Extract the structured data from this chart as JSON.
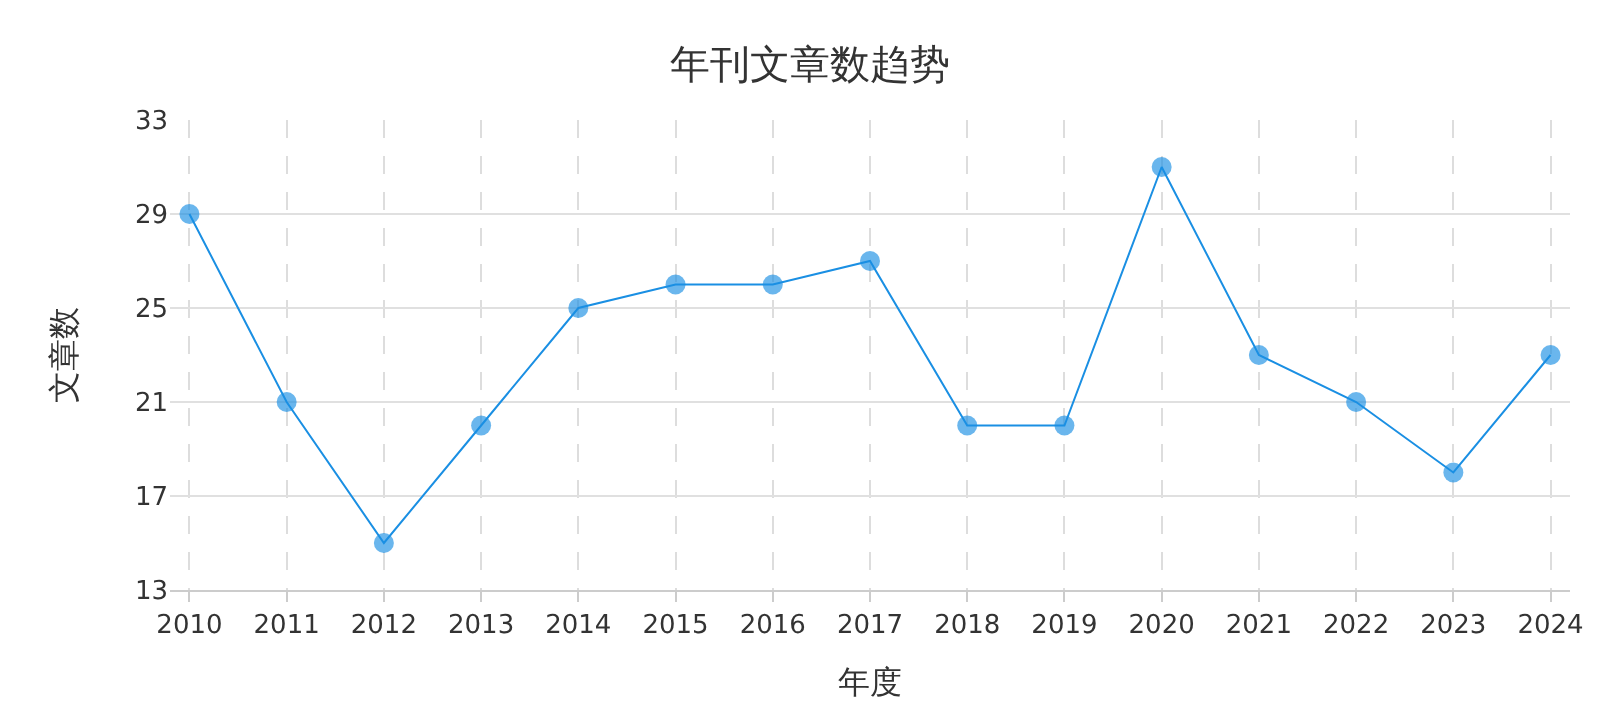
{
  "chart_data": {
    "type": "line",
    "title": "年刊文章数趋势",
    "xlabel": "年度",
    "ylabel": "文章数",
    "categories": [
      "2010",
      "2011",
      "2012",
      "2013",
      "2014",
      "2015",
      "2016",
      "2017",
      "2018",
      "2019",
      "2020",
      "2021",
      "2022",
      "2023",
      "2024"
    ],
    "series": [
      {
        "color": "#1a8fe3",
        "values": [
          29,
          21,
          15,
          20,
          25,
          26,
          26,
          27,
          20,
          20,
          31,
          23,
          21,
          18,
          23
        ]
      }
    ],
    "ylim": [
      13,
      33
    ],
    "yticks": [
      13,
      17,
      21,
      25,
      29,
      33
    ],
    "grid": true,
    "marker": "circle",
    "line_style": "solid"
  }
}
